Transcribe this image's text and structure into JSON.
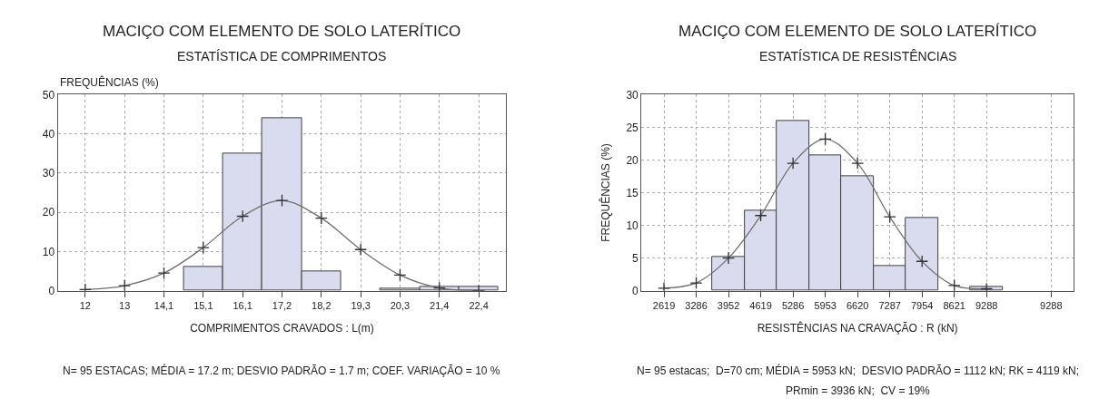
{
  "chart_data": [
    {
      "type": "bar",
      "title": "MACIÇO COM ELEMENTO DE SOLO LATERÍTICO",
      "subtitle": "ESTATÍSTICA DE COMPRIMENTOS",
      "xlabel": "COMPRIMENTOS CRAVADOS : L(m)",
      "ylabel": "FREQUÊNCIAS (%)",
      "categories": [
        "12",
        "13",
        "14,1",
        "15,1",
        "16,1",
        "17,2",
        "18,2",
        "19,3",
        "20,3",
        "21,4",
        "22,4"
      ],
      "series": [
        {
          "color": "#d9dcef",
          "values": [
            null,
            null,
            null,
            6,
            35,
            44,
            5,
            null,
            0.5,
            1,
            1
          ]
        },
        {
          "type": "line",
          "color": "#707070",
          "marker": "cross",
          "values": [
            0.3,
            1.3,
            4.5,
            11,
            19,
            23,
            18.5,
            10.5,
            4,
            0.7,
            0
          ]
        }
      ],
      "ylim": [
        0,
        50
      ],
      "yticks": [
        0,
        10,
        20,
        30,
        40,
        50
      ],
      "grid": true,
      "annotations": [
        "N= 95 ESTACAS; MÉDIA = 17.2 m; DESVIO PADRÃO = 1.7 m; COEF. VARIAÇÃO = 10 %"
      ]
    },
    {
      "type": "bar",
      "title": "MACIÇO COM ELEMENTO DE SOLO LATERÍTICO",
      "subtitle": "ESTATÍSTICA DE RESISTÊNCIAS",
      "xlabel": "RESISTÊNCIAS NA CRAVAÇÃO : R (kN)",
      "ylabel": "FREQUÊNCIAS (%)",
      "categories": [
        "2619",
        "3286",
        "3952",
        "4619",
        "5286",
        "5953",
        "6620",
        "7287",
        "7954",
        "8621",
        "9288",
        null,
        "9288"
      ],
      "series": [
        {
          "color": "#d9dcef",
          "values": [
            null,
            null,
            5.2,
            12.3,
            26,
            20.7,
            17.5,
            3.8,
            11.2,
            null,
            0.6,
            null,
            null
          ]
        },
        {
          "type": "line",
          "color": "#707070",
          "marker": "cross",
          "values": [
            0.4,
            1.2,
            5,
            11.5,
            19.5,
            23.2,
            19.5,
            11.3,
            4.5,
            0.8,
            0.3,
            null,
            null
          ]
        }
      ],
      "ylim": [
        0,
        30
      ],
      "yticks": [
        0,
        5,
        10,
        15,
        20,
        25,
        30
      ],
      "grid": true,
      "annotations": [
        "N= 95 estacas;  D=70 cm; MÉDIA = 5953 kN;  DESVIO PADRÃO = 1112 kN; RK = 4119 kN;",
        "PRmin = 3936 kN;  CV = 19%"
      ]
    }
  ]
}
